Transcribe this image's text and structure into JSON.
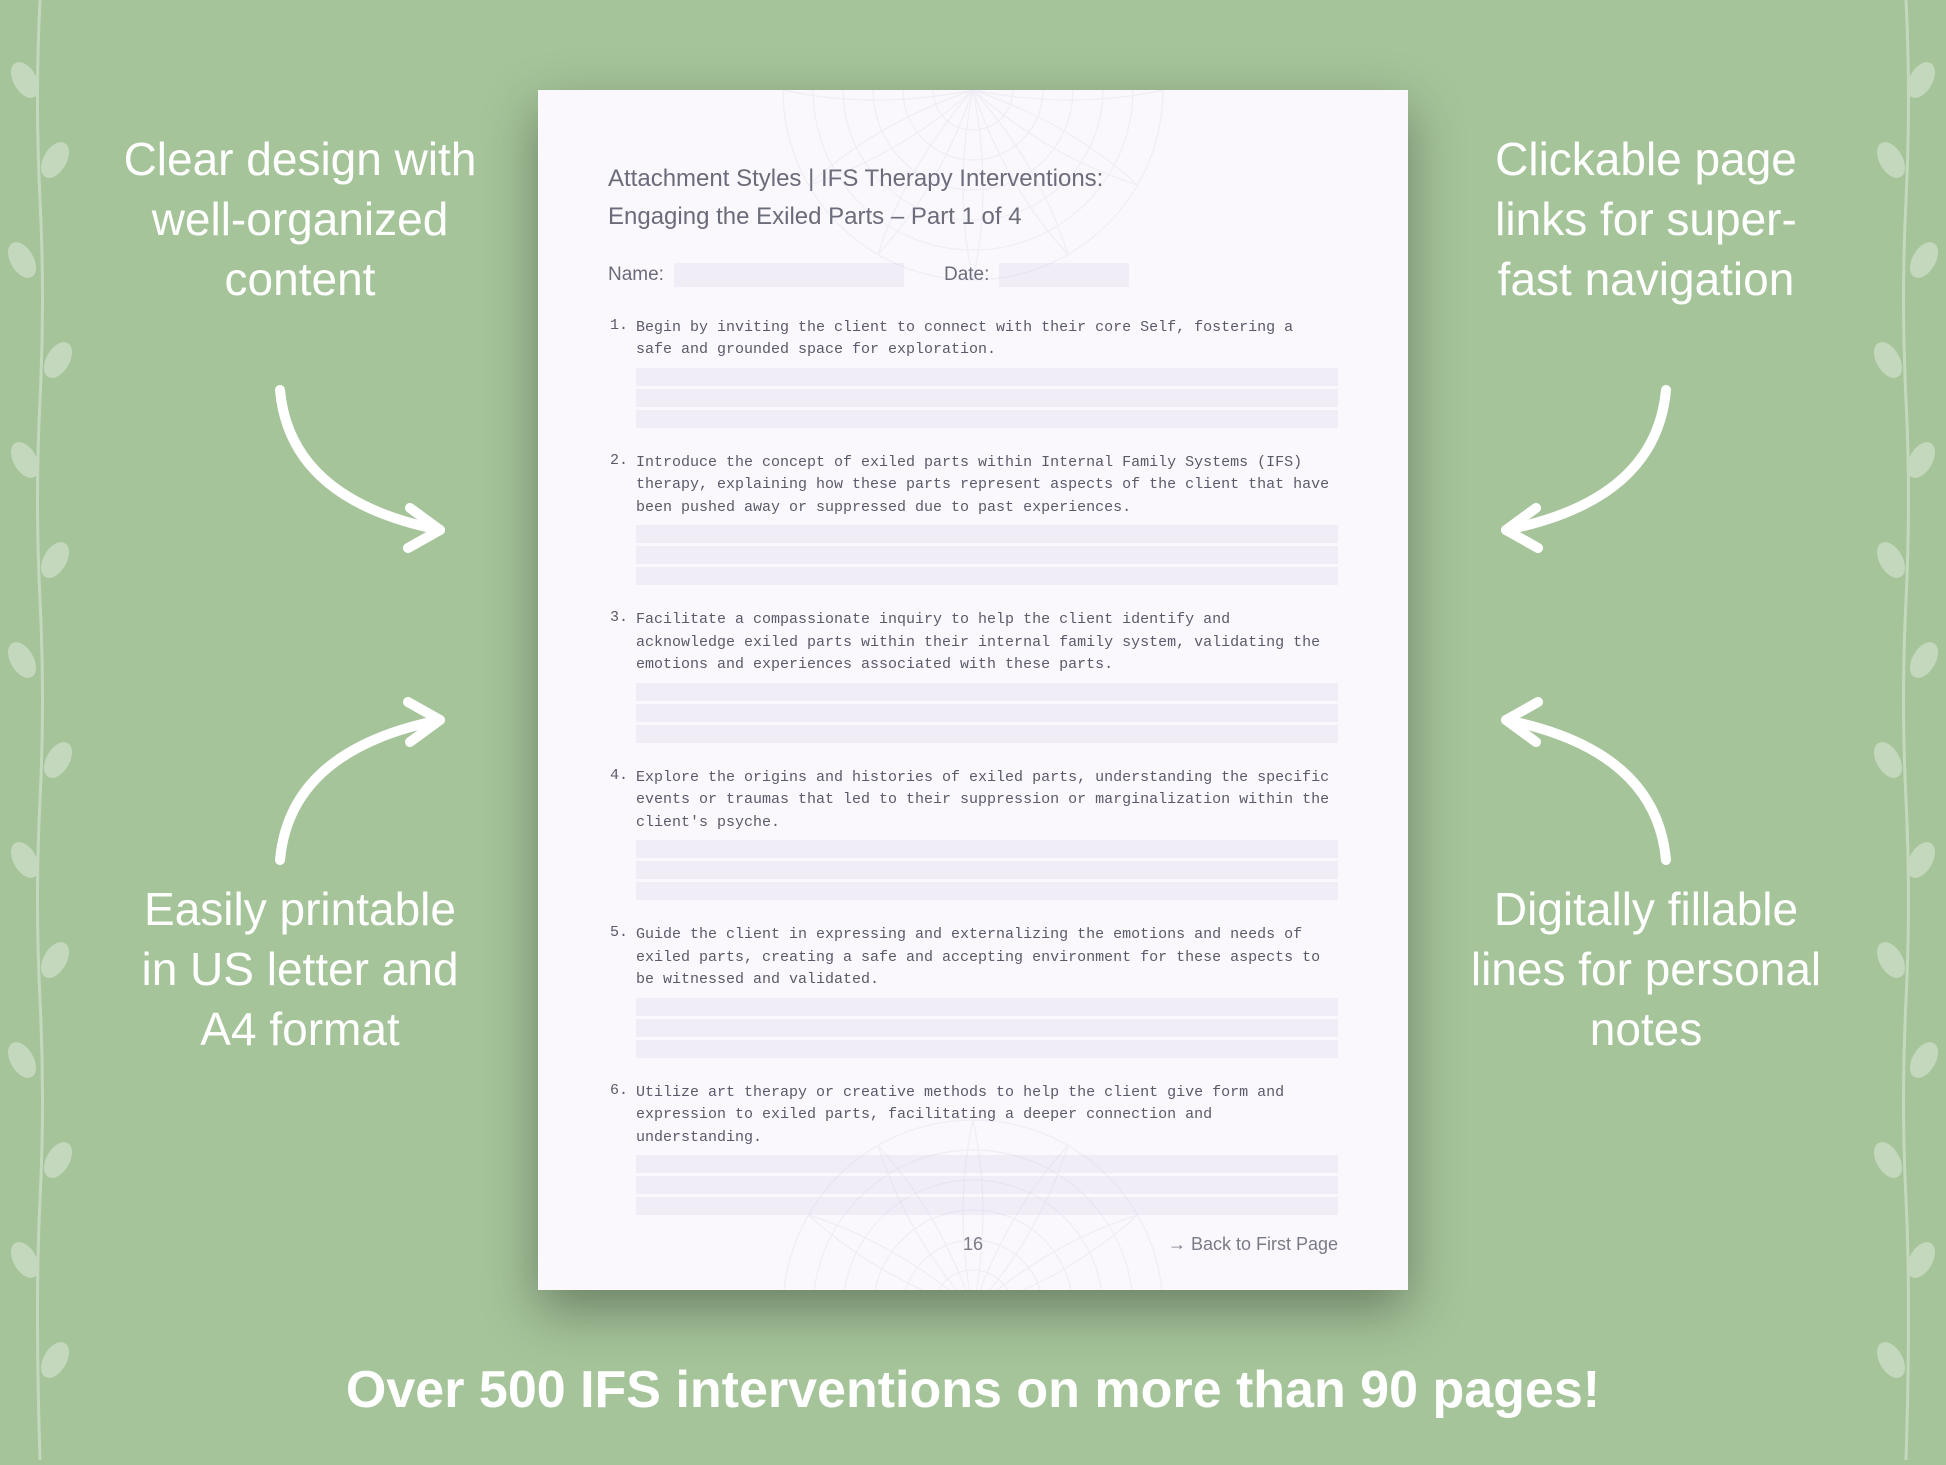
{
  "background_color": "#a5c49a",
  "vine_color": "#ffffff",
  "vine_opacity": 0.35,
  "callouts": {
    "top_left": "Clear design with well-organized content",
    "top_right": "Clickable page links for super-fast navigation",
    "bottom_left": "Easily printable in US letter and A4 format",
    "bottom_right": "Digitally fillable lines for personal notes",
    "color": "#ffffff",
    "fontsize": 46
  },
  "arrow_color": "#ffffff",
  "banner": {
    "text": "Over 500 IFS interventions on more than 90 pages!",
    "color": "#ffffff",
    "fontsize": 52
  },
  "document": {
    "page_bg": "#faf8fc",
    "header_line1": "Attachment Styles | IFS Therapy Interventions:",
    "header_line2": "Engaging the Exiled Parts – Part 1 of 4",
    "header_color": "#6b6b7a",
    "meta": {
      "name_label": "Name:",
      "date_label": "Date:",
      "input_bg": "#f1edf7"
    },
    "item_text_color": "#5a5a6a",
    "fill_line_bg": "#f1edf7",
    "items": [
      {
        "num": "1.",
        "text": "Begin by inviting the client to connect with their core Self, fostering a safe and grounded space for exploration."
      },
      {
        "num": "2.",
        "text": "Introduce the concept of exiled parts within Internal Family Systems (IFS) therapy, explaining how these parts represent aspects of the client that have been pushed away or suppressed due to past experiences."
      },
      {
        "num": "3.",
        "text": "Facilitate a compassionate inquiry to help the client identify and acknowledge exiled parts within their internal family system, validating the emotions and experiences associated with these parts."
      },
      {
        "num": "4.",
        "text": "Explore the origins and histories of exiled parts, understanding the specific events or traumas that led to their suppression or marginalization within the client's psyche."
      },
      {
        "num": "5.",
        "text": "Guide the client in expressing and externalizing the emotions and needs of exiled parts, creating a safe and accepting environment for these aspects to be witnessed and validated."
      },
      {
        "num": "6.",
        "text": "Utilize art therapy or creative methods to help the client give form and expression to exiled parts, facilitating a deeper connection and understanding."
      }
    ],
    "footer": {
      "page_number": "16",
      "back_link": "→ Back to First Page"
    },
    "mandala_color": "#b8b0d0"
  }
}
